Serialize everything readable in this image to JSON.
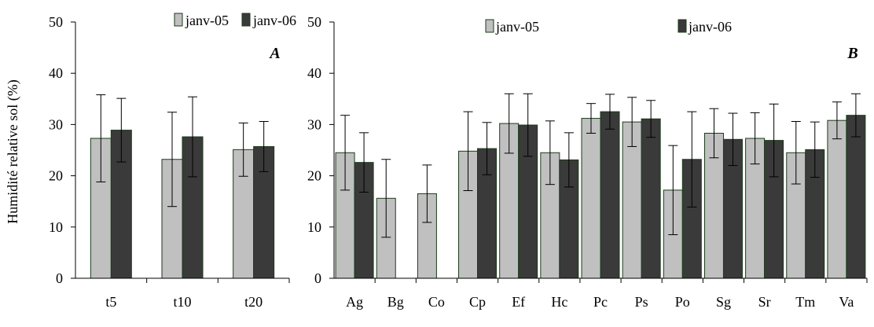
{
  "chart_data": [
    {
      "type": "bar",
      "panel_label": "A",
      "ylabel": "Humidité relative sol (%)",
      "ylim": [
        0,
        50
      ],
      "yticks": [
        "0",
        "10",
        "20",
        "30",
        "40",
        "50"
      ],
      "categories": [
        "t5",
        "t10",
        "t20"
      ],
      "legend": "top",
      "series": [
        {
          "name": "janv-05",
          "color": "#c0c0c0",
          "values": [
            27.3,
            23.2,
            25.1
          ],
          "err": [
            8.5,
            9.2,
            5.2
          ]
        },
        {
          "name": "janv-06",
          "color": "#3a3a3a",
          "values": [
            28.9,
            27.6,
            25.7
          ],
          "err": [
            6.2,
            7.8,
            4.9
          ]
        }
      ]
    },
    {
      "type": "bar",
      "panel_label": "B",
      "ylim": [
        0,
        50
      ],
      "yticks": [
        "0",
        "10",
        "20",
        "30",
        "40",
        "50"
      ],
      "categories": [
        "Ag",
        "Bg",
        "Co",
        "Cp",
        "Ef",
        "Hc",
        "Pc",
        "Ps",
        "Po",
        "Sg",
        "Sr",
        "Tm",
        "Va"
      ],
      "legend": "top",
      "series": [
        {
          "name": "janv-05",
          "color": "#c0c0c0",
          "values": [
            24.5,
            15.6,
            16.5,
            24.8,
            30.2,
            24.5,
            31.2,
            30.5,
            17.2,
            28.3,
            27.3,
            24.5,
            30.8
          ],
          "err": [
            7.3,
            7.6,
            5.6,
            7.7,
            5.8,
            6.2,
            2.9,
            4.8,
            8.7,
            4.8,
            5.0,
            6.1,
            3.6
          ]
        },
        {
          "name": "janv-06",
          "color": "#3a3a3a",
          "values": [
            22.6,
            null,
            null,
            25.3,
            29.9,
            23.1,
            32.5,
            31.1,
            23.2,
            27.1,
            26.9,
            25.1,
            31.8
          ],
          "err": [
            5.8,
            null,
            null,
            5.1,
            6.1,
            5.3,
            3.4,
            3.6,
            9.3,
            5.1,
            7.1,
            5.4,
            4.2
          ]
        }
      ]
    }
  ]
}
